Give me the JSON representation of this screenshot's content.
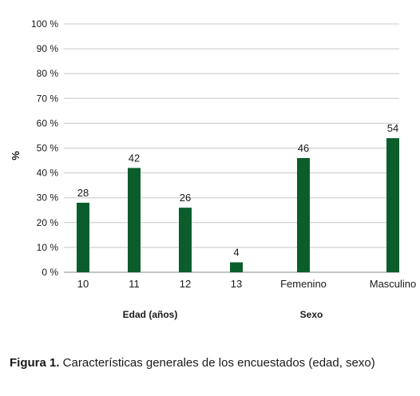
{
  "chart_data": {
    "type": "bar",
    "ylabel": "%",
    "ylim": [
      0,
      100
    ],
    "y_ticks": [
      "0 %",
      "10 %",
      "20 %",
      "30 %",
      "40 %",
      "50 %",
      "60 %",
      "70 %",
      "80 %",
      "90 %",
      "100 %"
    ],
    "categories": [
      "10",
      "11",
      "12",
      "13",
      "Femenino",
      "Masculino"
    ],
    "values": [
      28,
      42,
      26,
      4,
      46,
      54
    ],
    "data_labels": [
      "28",
      "42",
      "26",
      "4",
      "46",
      "54"
    ],
    "groups": [
      {
        "label": "Edad (años)",
        "categories": [
          "10",
          "11",
          "12",
          "13"
        ]
      },
      {
        "label": "Sexo",
        "categories": [
          "Femenino",
          "Masculino"
        ]
      }
    ],
    "bar_color": "#0b5e2c",
    "grid": true,
    "grid_color": "#c8c8c8"
  },
  "caption": {
    "label": "Figura 1.",
    "text": " Características generales de los encuestados (edad, sexo)"
  }
}
